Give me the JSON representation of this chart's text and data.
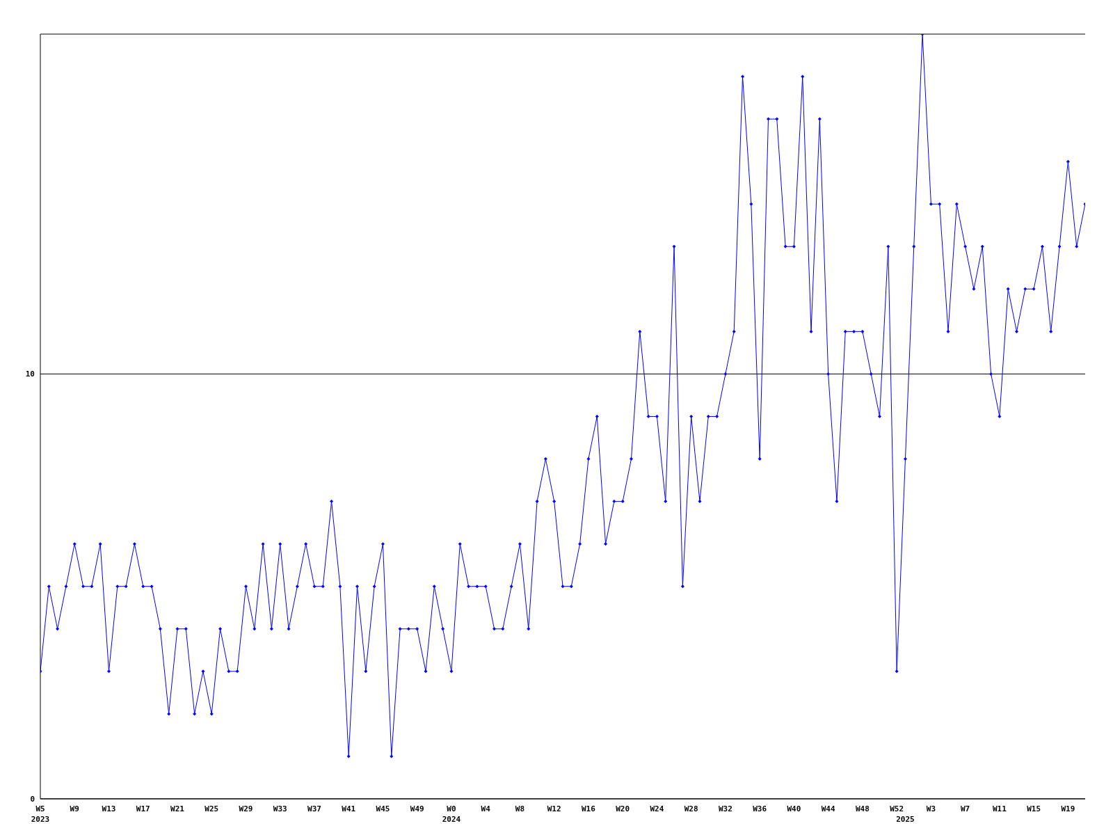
{
  "chart_data": {
    "type": "line",
    "categories": [
      "W5\n2023",
      null,
      null,
      null,
      "W9",
      null,
      null,
      null,
      "W13",
      null,
      null,
      null,
      "W17",
      null,
      null,
      null,
      "W21",
      null,
      null,
      null,
      "W25",
      null,
      null,
      null,
      "W29",
      null,
      null,
      null,
      "W33",
      null,
      null,
      null,
      "W37",
      null,
      null,
      null,
      "W41",
      null,
      null,
      null,
      "W45",
      null,
      null,
      null,
      "W49",
      null,
      null,
      null,
      "W0\n2024",
      null,
      null,
      null,
      "W4",
      null,
      null,
      null,
      "W8",
      null,
      null,
      null,
      "W12",
      null,
      null,
      null,
      "W16",
      null,
      null,
      null,
      "W20",
      null,
      null,
      null,
      "W24",
      null,
      null,
      null,
      "W28",
      null,
      null,
      null,
      "W32",
      null,
      null,
      null,
      "W36",
      null,
      null,
      null,
      "W40",
      null,
      null,
      null,
      "W44",
      null,
      null,
      null,
      "W48",
      null,
      null,
      null,
      "W52",
      "\n2025",
      null,
      null,
      "W3",
      null,
      null,
      null,
      "W7",
      null,
      null,
      null,
      "W11",
      null,
      null,
      null,
      "W15",
      null,
      null,
      null,
      "W19",
      null,
      null
    ],
    "series": [
      {
        "color": "#0000ff",
        "values": [
          3,
          5,
          4,
          5,
          6,
          5,
          5,
          6,
          3,
          5,
          5,
          6,
          5,
          5,
          4,
          2,
          4,
          4,
          2,
          3,
          2,
          4,
          3,
          3,
          5,
          4,
          6,
          4,
          6,
          4,
          5,
          6,
          5,
          5,
          7,
          5,
          1,
          5,
          3,
          5,
          6,
          1,
          4,
          4,
          4,
          3,
          5,
          4,
          3,
          6,
          5,
          5,
          5,
          4,
          4,
          5,
          6,
          4,
          7,
          8,
          7,
          5,
          5,
          6,
          8,
          9,
          6,
          7,
          7,
          8,
          11,
          9,
          9,
          7,
          13,
          5,
          9,
          7,
          9,
          9,
          10,
          11,
          17,
          14,
          8,
          16,
          16,
          13,
          13,
          17,
          11,
          16,
          10,
          7,
          11,
          11,
          11,
          10,
          9,
          13,
          3,
          8,
          13,
          18,
          14,
          14,
          11,
          14,
          13,
          12,
          13,
          10,
          9,
          12,
          11,
          12,
          12,
          13,
          11,
          13,
          15,
          13,
          14
        ]
      }
    ],
    "ylim": [
      0,
      18
    ],
    "yticks": [
      0,
      10
    ],
    "grid": "y",
    "legend": false,
    "marker": "diamond",
    "line_style": "solid"
  }
}
